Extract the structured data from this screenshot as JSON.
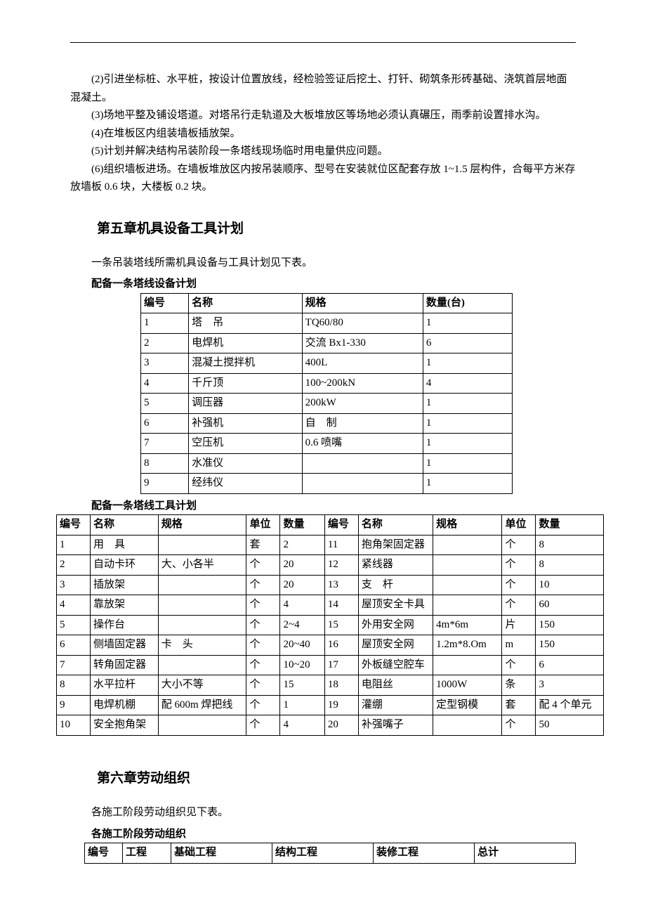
{
  "paragraphs": {
    "p1": "(2)引进坐标桩、水平桩，按设计位置放线，经检验签证后挖土、打钎、砌筑条形砖基础、浇筑首层地面混凝土。",
    "p2": "(3)场地平整及铺设塔道。对塔吊行走轨道及大板堆放区等场地必须认真碾压，雨季前设置排水沟。",
    "p3": "(4)在堆板区内组装墙板插放架。",
    "p4": "(5)计划并解决结构吊装阶段一条塔线现场临时用电量供应问题。",
    "p5": "(6)组织墙板进场。在墙板堆放区内按吊装顺序、型号在安装就位区配套存放 1~1.5 层构件，合每平方米存放墙板 0.6 块，大楼板 0.2 块。"
  },
  "chapter5": {
    "title": "第五章机具设备工具计划",
    "intro": "一条吊装塔线所需机具设备与工具计划见下表。",
    "table1_caption": "配备一条塔线设备计划",
    "table1": {
      "columns": [
        "编号",
        "名称",
        "规格",
        "数量(台)"
      ],
      "rows": [
        [
          "1",
          "塔　吊",
          "TQ60/80",
          "1"
        ],
        [
          "2",
          "电焊机",
          "交流 Bx1-330",
          "6"
        ],
        [
          "3",
          "混凝土搅拌机",
          "400L",
          "1"
        ],
        [
          "4",
          "千斤顶",
          "100~200kN",
          "4"
        ],
        [
          "5",
          "调压器",
          "200kW",
          "1"
        ],
        [
          "6",
          "补强机",
          "自　制",
          "1"
        ],
        [
          "7",
          "空压机",
          "0.6 喷嘴",
          "1"
        ],
        [
          "8",
          "水准仪",
          "",
          "1"
        ],
        [
          "9",
          "经纬仪",
          "",
          "1"
        ]
      ]
    },
    "table2_caption": "配备一条塔线工具计划",
    "table2": {
      "columns": [
        "编号",
        "名称",
        "规格",
        "单位",
        "数量",
        "编号",
        "名称",
        "规格",
        "单位",
        "数量"
      ],
      "rows": [
        [
          "1",
          "用　具",
          "",
          "套",
          "2",
          "11",
          "抱角架固定器",
          "",
          "个",
          "8"
        ],
        [
          "2",
          "自动卡环",
          "大、小各半",
          "个",
          "20",
          "12",
          "紧线器",
          "",
          "个",
          "8"
        ],
        [
          "3",
          "插放架",
          "",
          "个",
          "20",
          "13",
          "支　杆",
          "",
          "个",
          "10"
        ],
        [
          "4",
          "靠放架",
          "",
          "个",
          "4",
          "14",
          "屋顶安全卡具",
          "",
          "个",
          "60"
        ],
        [
          "5",
          "操作台",
          "",
          "个",
          "2~4",
          "15",
          "外用安全网",
          "4m*6m",
          "片",
          "150"
        ],
        [
          "6",
          "侧墙固定器",
          "卡　头",
          "个",
          "20~40",
          "16",
          "屋顶安全网",
          "1.2m*8.Om",
          "m",
          "150"
        ],
        [
          "7",
          "转角固定器",
          "",
          "个",
          "10~20",
          "17",
          "外板缝空腔车",
          "",
          "个",
          "6"
        ],
        [
          "8",
          "水平拉杆",
          "大小不等",
          "个",
          "15",
          "18",
          "电阻丝",
          "1000W",
          "条",
          "3"
        ],
        [
          "9",
          "电焊机棚",
          "配 600m 焊把线",
          "个",
          "1",
          "19",
          "灌绷",
          "定型钢模",
          "套",
          "配 4 个单元"
        ],
        [
          "10",
          "安全抱角架",
          "",
          "个",
          "4",
          "20",
          "补强嘴子",
          "",
          "个",
          "50"
        ]
      ]
    }
  },
  "chapter6": {
    "title": "第六章劳动组织",
    "intro": "各施工阶段劳动组织见下表。",
    "table3_caption": "各施工阶段劳动组织",
    "table3": {
      "columns": [
        "编号",
        "工程",
        "基础工程",
        "结构工程",
        "装修工程",
        "总计"
      ]
    }
  }
}
